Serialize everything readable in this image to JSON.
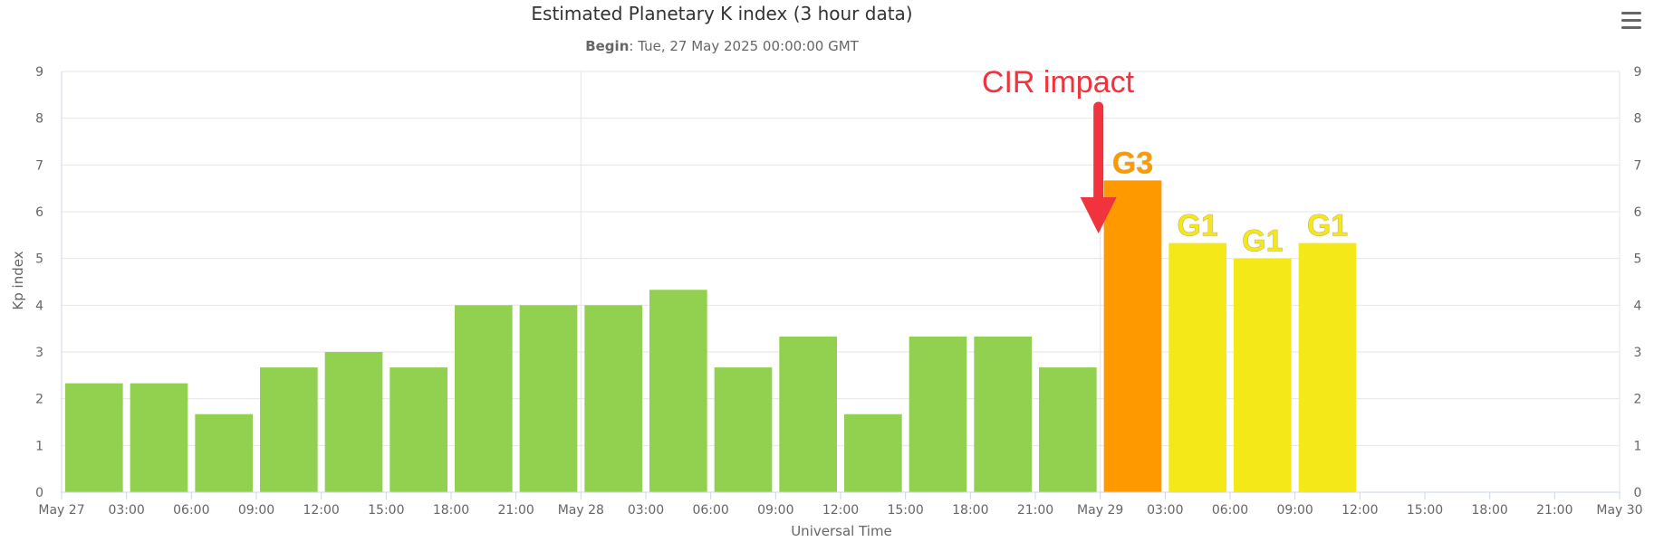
{
  "header": {
    "title": "Estimated Planetary K index (3 hour data)",
    "subtitle_label": "Begin",
    "subtitle_value": ": Tue, 27 May 2025 00:00:00 GMT"
  },
  "menu": {
    "icon": "hamburger-menu-icon"
  },
  "chart_data": {
    "type": "bar",
    "title": "Estimated Planetary K index (3 hour data)",
    "xlabel": "Universal Time",
    "ylabel": "Kp index",
    "ylim": [
      0,
      9
    ],
    "yticks": [
      "0",
      "1",
      "2",
      "3",
      "4",
      "5",
      "6",
      "7",
      "8",
      "9"
    ],
    "xticks": [
      "May 27",
      "03:00",
      "06:00",
      "09:00",
      "12:00",
      "15:00",
      "18:00",
      "21:00",
      "May 28",
      "03:00",
      "06:00",
      "09:00",
      "12:00",
      "15:00",
      "18:00",
      "21:00",
      "May 29",
      "03:00",
      "06:00",
      "09:00",
      "12:00",
      "15:00",
      "18:00",
      "21:00",
      "May 30"
    ],
    "values": [
      2.33,
      2.33,
      1.67,
      2.67,
      3.0,
      2.67,
      4.0,
      4.0,
      4.0,
      4.33,
      2.67,
      3.33,
      1.67,
      3.33,
      3.33,
      2.67,
      6.67,
      5.33,
      5.0,
      5.33
    ],
    "bar_colors": [
      "#92d050",
      "#92d050",
      "#92d050",
      "#92d050",
      "#92d050",
      "#92d050",
      "#92d050",
      "#92d050",
      "#92d050",
      "#92d050",
      "#92d050",
      "#92d050",
      "#92d050",
      "#92d050",
      "#92d050",
      "#92d050",
      "#ff9900",
      "#f5e818",
      "#f5e818",
      "#f5e818"
    ],
    "bar_labels": [
      {
        "index": 16,
        "text": "G3",
        "color": "#ff9900"
      },
      {
        "index": 17,
        "text": "G1",
        "color": "#f5e818"
      },
      {
        "index": 18,
        "text": "G1",
        "color": "#f5e818"
      },
      {
        "index": 19,
        "text": "G1",
        "color": "#f5e818"
      }
    ],
    "annotation": {
      "text": "CIR impact",
      "color": "#f0333d",
      "arrow_index": 16
    },
    "grid": true
  }
}
